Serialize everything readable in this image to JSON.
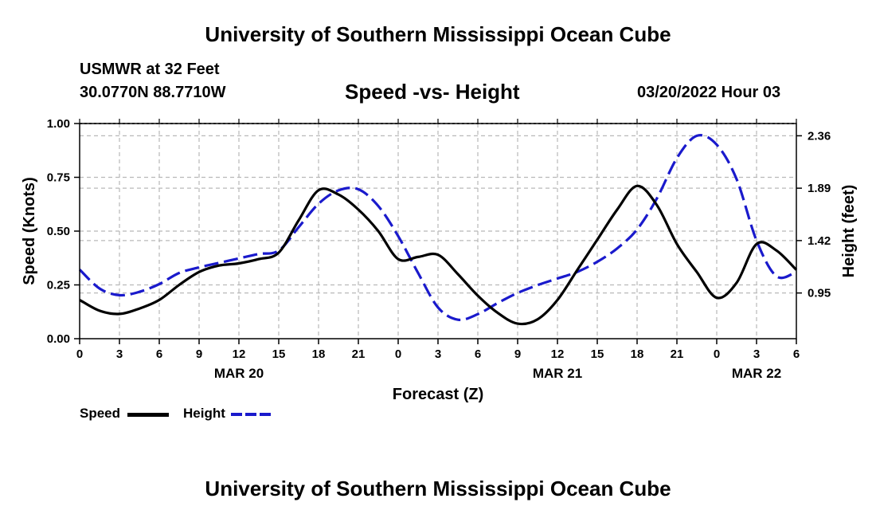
{
  "header": {
    "title": "University of Southern Mississippi Ocean Cube",
    "station": "USMWR at 32 Feet",
    "coords": "30.0770N  88.7710W",
    "datetime": "03/20/2022 Hour 03",
    "footer_title": "University of Southern Mississippi Ocean Cube"
  },
  "legend": {
    "speed_label": "Speed",
    "height_label": "Height"
  },
  "colors": {
    "speed": "#000000",
    "height": "#1a1acc",
    "grid": "#b8b8b8"
  },
  "chart_data": {
    "type": "line",
    "title": "Speed -vs- Height",
    "xlabel": "Forecast (Z)",
    "ylabel": "Speed (Knots)",
    "y2label": "Height (feet)",
    "xlim": [
      0,
      54
    ],
    "ylim": [
      0,
      1.0
    ],
    "y2lim": [
      0.54,
      2.47
    ],
    "grid": true,
    "x_ticks": [
      0,
      3,
      6,
      9,
      12,
      15,
      18,
      21,
      24,
      27,
      30,
      33,
      36,
      39,
      42,
      45,
      48,
      51,
      54
    ],
    "x_tick_labels": [
      "0",
      "3",
      "6",
      "9",
      "12",
      "15",
      "18",
      "21",
      "0",
      "3",
      "6",
      "9",
      "12",
      "15",
      "18",
      "21",
      "0",
      "3",
      "6"
    ],
    "date_labels": [
      {
        "x": 12,
        "label": "MAR 20"
      },
      {
        "x": 36,
        "label": "MAR 21"
      },
      {
        "x": 51,
        "label": "MAR 22"
      }
    ],
    "y_ticks": [
      0.0,
      0.25,
      0.5,
      0.75,
      1.0
    ],
    "y_tick_labels": [
      "0.00",
      "0.25",
      "0.50",
      "0.75",
      "1.00"
    ],
    "y2_ticks": [
      0.95,
      1.42,
      1.89,
      2.36
    ],
    "y2_tick_labels": [
      "0.95",
      "1.42",
      "1.89",
      "2.36"
    ],
    "series": [
      {
        "name": "Speed",
        "axis": "left",
        "style": "solid",
        "x": [
          0,
          1.5,
          3,
          4.5,
          6,
          7.5,
          9,
          10.5,
          12,
          13.5,
          15,
          16.5,
          18,
          19.5,
          21,
          22.5,
          24,
          25.5,
          27,
          28.5,
          30,
          31.5,
          33,
          34.5,
          36,
          37.5,
          39,
          40.5,
          42,
          43.5,
          45,
          46.5,
          48,
          49.5,
          51,
          52.5,
          54
        ],
        "values": [
          0.18,
          0.13,
          0.115,
          0.14,
          0.18,
          0.25,
          0.31,
          0.34,
          0.35,
          0.37,
          0.4,
          0.55,
          0.69,
          0.67,
          0.6,
          0.5,
          0.37,
          0.38,
          0.39,
          0.3,
          0.2,
          0.12,
          0.07,
          0.09,
          0.18,
          0.32,
          0.46,
          0.6,
          0.71,
          0.62,
          0.44,
          0.31,
          0.19,
          0.26,
          0.44,
          0.41,
          0.32
        ]
      },
      {
        "name": "Height",
        "axis": "right",
        "style": "dashed",
        "x": [
          0,
          1.5,
          3,
          4.5,
          6,
          7.5,
          9,
          10.5,
          12,
          13.5,
          15,
          16.5,
          18,
          19.5,
          21,
          22.5,
          24,
          25.5,
          27,
          28.5,
          30,
          31.5,
          33,
          34.5,
          36,
          37.5,
          39,
          40.5,
          42,
          43.5,
          45,
          46.5,
          48,
          49.5,
          51,
          52.5,
          54
        ],
        "values": [
          1.16,
          0.99,
          0.93,
          0.96,
          1.03,
          1.13,
          1.18,
          1.22,
          1.26,
          1.3,
          1.33,
          1.54,
          1.75,
          1.87,
          1.88,
          1.73,
          1.46,
          1.13,
          0.82,
          0.71,
          0.76,
          0.86,
          0.95,
          1.02,
          1.08,
          1.14,
          1.23,
          1.35,
          1.52,
          1.8,
          2.16,
          2.36,
          2.28,
          1.97,
          1.42,
          1.1,
          1.14
        ]
      }
    ]
  }
}
